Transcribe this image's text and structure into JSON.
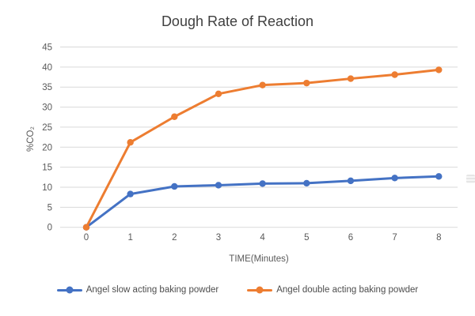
{
  "chart_data": {
    "type": "line",
    "title": "Dough Rate of Reaction",
    "xlabel": "TIME(Minutes)",
    "ylabel": "%CO₂",
    "x": [
      0,
      1,
      2,
      3,
      4,
      5,
      6,
      7,
      8
    ],
    "x_tick_labels": [
      "0",
      "1",
      "2",
      "3",
      "4",
      "5",
      "6",
      "7",
      "8"
    ],
    "y_ticks": [
      0,
      5,
      10,
      15,
      20,
      25,
      30,
      35,
      40,
      45
    ],
    "ylim": [
      0,
      45
    ],
    "grid": "horizontal",
    "legend_position": "bottom",
    "series": [
      {
        "name": "Angel slow acting baking powder",
        "color": "#4472C4",
        "marker": "circle",
        "values": [
          0,
          8.3,
          10.2,
          10.5,
          10.9,
          11.0,
          11.6,
          12.3,
          12.7
        ]
      },
      {
        "name": "Angel double acting baking powder",
        "color": "#ED7D31",
        "marker": "circle",
        "values": [
          0,
          21.2,
          27.6,
          33.3,
          35.5,
          36.0,
          37.1,
          38.1,
          39.3
        ]
      }
    ]
  },
  "colors": {
    "gridline": "#D9D9D9",
    "tick_text": "#595959",
    "title_text": "#3F3F3F",
    "background": "#FFFFFF"
  }
}
